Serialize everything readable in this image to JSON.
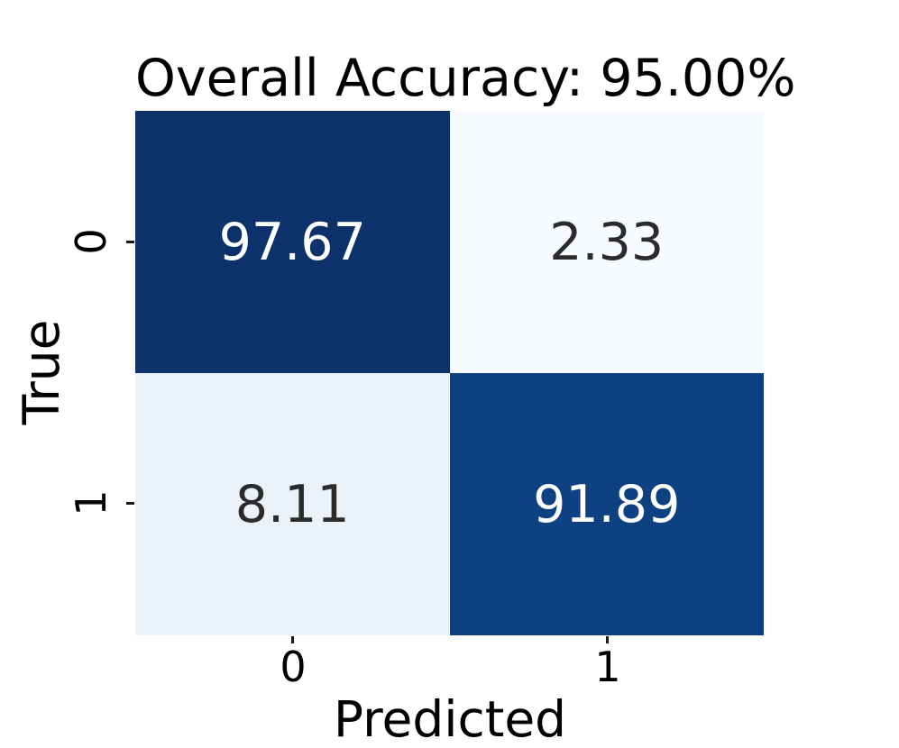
{
  "chart_data": {
    "type": "heatmap",
    "title": "Overall Accuracy: 95.00%",
    "xlabel": "Predicted",
    "ylabel": "True",
    "x_ticklabels": [
      "0",
      "1"
    ],
    "y_ticklabels": [
      "0",
      "1"
    ],
    "matrix": [
      [
        97.67,
        2.33
      ],
      [
        8.11,
        91.89
      ]
    ],
    "cells": [
      {
        "row": "0",
        "col": "0",
        "label": "97.67",
        "bg": "#0D316A",
        "fg": "#FFFFFF",
        "style": "background-color:#0D316A;color:#FFFFFF"
      },
      {
        "row": "0",
        "col": "1",
        "label": "2.33",
        "bg": "#F7FAFE",
        "fg": "#2B2B2B",
        "style": "background-color:#F7FAFE;color:#2B2B2B"
      },
      {
        "row": "1",
        "col": "0",
        "label": "8.11",
        "bg": "#EBF2FA",
        "fg": "#2B2B2B",
        "style": "background-color:#EBF2FA;color:#2B2B2B"
      },
      {
        "row": "1",
        "col": "1",
        "label": "91.89",
        "bg": "#0D4181",
        "fg": "#FFFFFF",
        "style": "background-color:#0D4181;color:#FFFFFF"
      }
    ],
    "legend": "none",
    "grid": false,
    "background": "#FFFFFF",
    "tick_color": "#1A1A1A",
    "text_color": "#000000"
  }
}
